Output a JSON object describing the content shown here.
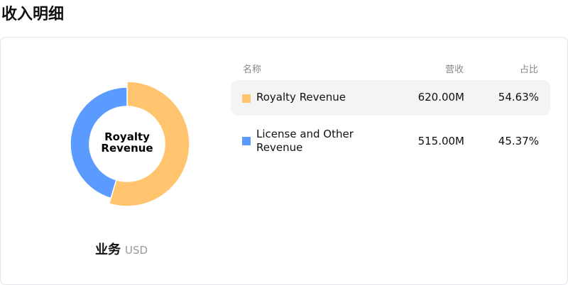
{
  "title": "收入明细",
  "donut": {
    "center_label": "Royalty Revenue",
    "highlighted": "Royalty Revenue"
  },
  "business": {
    "label": "业务",
    "currency": "USD"
  },
  "table": {
    "headers": {
      "name": "名称",
      "revenue": "营收",
      "share": "占比"
    },
    "rows": [
      {
        "name": "Royalty Revenue",
        "revenue": "620.00M",
        "share": "54.63%",
        "value": 620,
        "percent": 54.63,
        "color": "#ffc46d"
      },
      {
        "name": "License and Other Revenue",
        "revenue": "515.00M",
        "share": "45.37%",
        "value": 515,
        "percent": 45.37,
        "color": "#5b9bff"
      }
    ]
  }
}
